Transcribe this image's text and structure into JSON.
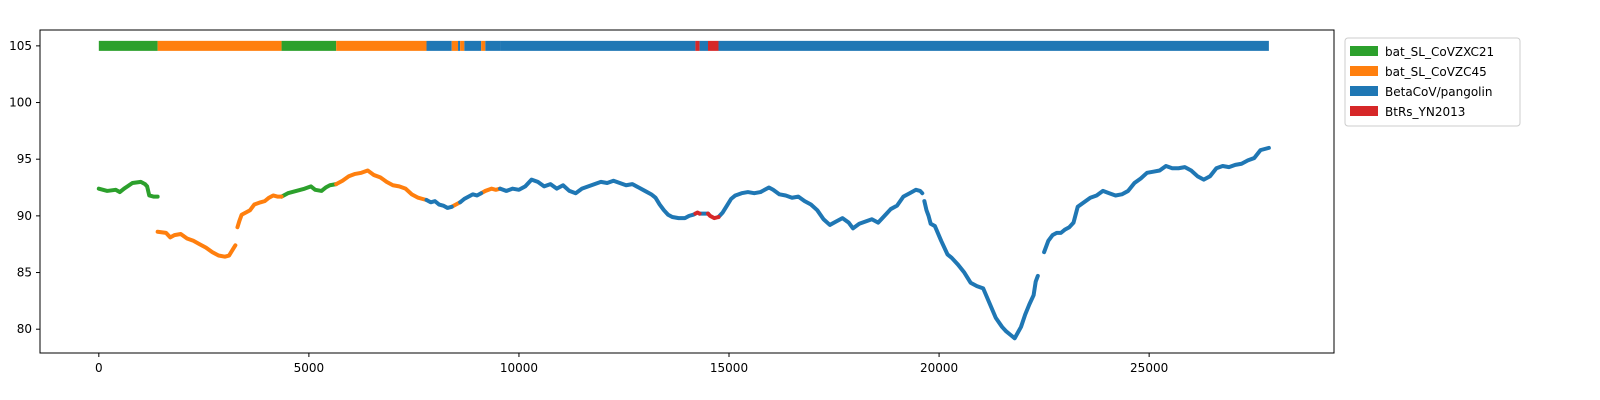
{
  "chart_data": {
    "type": "scatter",
    "title": "",
    "xlabel": "",
    "ylabel": "",
    "xlim": [
      -1400,
      29400
    ],
    "ylim": [
      77.9,
      106.4
    ],
    "x_ticks": [
      0,
      5000,
      10000,
      15000,
      20000,
      25000
    ],
    "y_ticks": [
      80,
      85,
      90,
      95,
      100,
      105
    ],
    "grid": false,
    "legend_position": "outside-top-right",
    "legend": [
      {
        "name": "bat_SL_CoVZXC21",
        "color": "#2ca02c"
      },
      {
        "name": "bat_SL_CoVZC45",
        "color": "#ff7f0e"
      },
      {
        "name": "BetaCoV/pangolin",
        "color": "#1f77b4"
      },
      {
        "name": "BtRs_YN2013",
        "color": "#d62728"
      }
    ],
    "segment_bar": {
      "y": 105,
      "segments": [
        {
          "start": 0,
          "end": 1400,
          "series": "bat_SL_CoVZXC21"
        },
        {
          "start": 1400,
          "end": 4350,
          "series": "bat_SL_CoVZC45"
        },
        {
          "start": 4350,
          "end": 5650,
          "series": "bat_SL_CoVZXC21"
        },
        {
          "start": 5650,
          "end": 7800,
          "series": "bat_SL_CoVZC45"
        },
        {
          "start": 7800,
          "end": 8400,
          "series": "BetaCoV/pangolin"
        },
        {
          "start": 8400,
          "end": 8550,
          "series": "bat_SL_CoVZC45"
        },
        {
          "start": 8550,
          "end": 8600,
          "series": "BetaCoV/pangolin"
        },
        {
          "start": 8600,
          "end": 8700,
          "series": "bat_SL_CoVZC45"
        },
        {
          "start": 8700,
          "end": 9100,
          "series": "BetaCoV/pangolin"
        },
        {
          "start": 9100,
          "end": 9200,
          "series": "bat_SL_CoVZC45"
        },
        {
          "start": 9200,
          "end": 9550,
          "series": "BetaCoV/pangolin"
        },
        {
          "start": 9550,
          "end": 14200,
          "series": "BetaCoV/pangolin"
        },
        {
          "start": 14200,
          "end": 14300,
          "series": "BtRs_YN2013"
        },
        {
          "start": 14300,
          "end": 14500,
          "series": "BetaCoV/pangolin"
        },
        {
          "start": 14500,
          "end": 14750,
          "series": "BtRs_YN2013"
        },
        {
          "start": 14750,
          "end": 27850,
          "series": "BetaCoV/pangolin"
        }
      ]
    },
    "series": [
      {
        "name": "bat_SL_CoVZXC21",
        "color": "#2ca02c",
        "segments": [
          [
            [
              0,
              92.4
            ],
            [
              200,
              92.2
            ],
            [
              400,
              92.3
            ],
            [
              500,
              92.1
            ],
            [
              600,
              92.4
            ],
            [
              800,
              92.9
            ],
            [
              1000,
              93.0
            ],
            [
              1100,
              92.8
            ],
            [
              1150,
              92.6
            ],
            [
              1200,
              91.8
            ],
            [
              1300,
              91.7
            ],
            [
              1400,
              91.7
            ]
          ],
          [
            [
              4350,
              91.7
            ],
            [
              4500,
              92.0
            ],
            [
              4700,
              92.2
            ],
            [
              4900,
              92.4
            ],
            [
              5050,
              92.6
            ],
            [
              5150,
              92.3
            ],
            [
              5300,
              92.2
            ],
            [
              5400,
              92.5
            ],
            [
              5500,
              92.7
            ],
            [
              5650,
              92.8
            ]
          ]
        ]
      },
      {
        "name": "bat_SL_CoVZC45",
        "color": "#ff7f0e",
        "segments": [
          [
            [
              1400,
              88.6
            ],
            [
              1600,
              88.5
            ],
            [
              1700,
              88.1
            ],
            [
              1800,
              88.3
            ],
            [
              1950,
              88.4
            ],
            [
              2100,
              88.0
            ],
            [
              2250,
              87.8
            ],
            [
              2400,
              87.5
            ],
            [
              2550,
              87.2
            ],
            [
              2700,
              86.8
            ],
            [
              2850,
              86.5
            ],
            [
              3000,
              86.4
            ],
            [
              3100,
              86.5
            ],
            [
              3200,
              87.1
            ],
            [
              3250,
              87.4
            ]
          ],
          [
            [
              3300,
              89.0
            ],
            [
              3350,
              89.6
            ],
            [
              3400,
              90.1
            ],
            [
              3500,
              90.3
            ],
            [
              3600,
              90.5
            ],
            [
              3700,
              91.0
            ],
            [
              3850,
              91.2
            ],
            [
              3950,
              91.3
            ],
            [
              4050,
              91.6
            ],
            [
              4150,
              91.8
            ],
            [
              4250,
              91.7
            ],
            [
              4350,
              91.7
            ]
          ],
          [
            [
              5650,
              92.8
            ],
            [
              5800,
              93.1
            ],
            [
              5950,
              93.5
            ],
            [
              6100,
              93.7
            ],
            [
              6250,
              93.8
            ],
            [
              6400,
              94.0
            ],
            [
              6550,
              93.6
            ],
            [
              6700,
              93.4
            ],
            [
              6850,
              93.0
            ],
            [
              7000,
              92.7
            ],
            [
              7150,
              92.6
            ],
            [
              7300,
              92.4
            ],
            [
              7450,
              91.9
            ],
            [
              7600,
              91.6
            ],
            [
              7700,
              91.5
            ],
            [
              7800,
              91.4
            ]
          ],
          [
            [
              8400,
              90.8
            ],
            [
              8500,
              91.0
            ],
            [
              8600,
              91.2
            ]
          ],
          [
            [
              9100,
              92.0
            ],
            [
              9200,
              92.2
            ],
            [
              9350,
              92.4
            ],
            [
              9450,
              92.3
            ],
            [
              9550,
              92.4
            ]
          ]
        ]
      },
      {
        "name": "BetaCoV/pangolin",
        "color": "#1f77b4",
        "segments": [
          [
            [
              7800,
              91.4
            ],
            [
              7900,
              91.2
            ],
            [
              8000,
              91.3
            ],
            [
              8100,
              91.0
            ],
            [
              8200,
              90.9
            ],
            [
              8300,
              90.7
            ],
            [
              8400,
              90.8
            ]
          ],
          [
            [
              8600,
              91.2
            ],
            [
              8700,
              91.5
            ],
            [
              8800,
              91.7
            ],
            [
              8900,
              91.9
            ],
            [
              9000,
              91.8
            ],
            [
              9100,
              92.0
            ]
          ],
          [
            [
              9550,
              92.4
            ],
            [
              9700,
              92.2
            ],
            [
              9850,
              92.4
            ],
            [
              10000,
              92.3
            ],
            [
              10150,
              92.6
            ],
            [
              10300,
              93.2
            ],
            [
              10450,
              93.0
            ],
            [
              10600,
              92.6
            ],
            [
              10750,
              92.8
            ],
            [
              10900,
              92.4
            ],
            [
              11050,
              92.7
            ],
            [
              11200,
              92.2
            ],
            [
              11350,
              92.0
            ],
            [
              11500,
              92.4
            ],
            [
              11650,
              92.6
            ],
            [
              11800,
              92.8
            ],
            [
              11950,
              93.0
            ],
            [
              12100,
              92.9
            ],
            [
              12250,
              93.1
            ],
            [
              12400,
              92.9
            ],
            [
              12550,
              92.7
            ],
            [
              12700,
              92.8
            ],
            [
              12850,
              92.5
            ],
            [
              13000,
              92.2
            ],
            [
              13150,
              91.9
            ],
            [
              13250,
              91.6
            ],
            [
              13350,
              91.0
            ],
            [
              13450,
              90.5
            ],
            [
              13550,
              90.1
            ],
            [
              13650,
              89.9
            ],
            [
              13800,
              89.8
            ],
            [
              13950,
              89.8
            ],
            [
              14050,
              90.0
            ],
            [
              14150,
              90.1
            ],
            [
              14200,
              90.2
            ]
          ],
          [
            [
              14300,
              90.2
            ],
            [
              14400,
              90.2
            ],
            [
              14500,
              90.2
            ]
          ],
          [
            [
              14750,
              89.9
            ],
            [
              14850,
              90.3
            ],
            [
              14950,
              90.9
            ],
            [
              15050,
              91.5
            ],
            [
              15150,
              91.8
            ],
            [
              15300,
              92.0
            ],
            [
              15450,
              92.1
            ],
            [
              15600,
              92.0
            ],
            [
              15750,
              92.1
            ],
            [
              15850,
              92.3
            ],
            [
              15950,
              92.5
            ],
            [
              16050,
              92.3
            ],
            [
              16200,
              91.9
            ],
            [
              16350,
              91.8
            ],
            [
              16500,
              91.6
            ],
            [
              16650,
              91.7
            ],
            [
              16800,
              91.3
            ],
            [
              16950,
              91.0
            ],
            [
              17100,
              90.5
            ],
            [
              17250,
              89.7
            ],
            [
              17400,
              89.2
            ],
            [
              17550,
              89.5
            ],
            [
              17700,
              89.8
            ],
            [
              17850,
              89.4
            ],
            [
              17950,
              88.9
            ],
            [
              18100,
              89.3
            ],
            [
              18250,
              89.5
            ],
            [
              18400,
              89.7
            ],
            [
              18550,
              89.4
            ],
            [
              18700,
              90.0
            ],
            [
              18850,
              90.6
            ],
            [
              19000,
              90.9
            ],
            [
              19150,
              91.7
            ],
            [
              19300,
              92.0
            ],
            [
              19450,
              92.3
            ],
            [
              19550,
              92.2
            ],
            [
              19600,
              92.0
            ]
          ],
          [
            [
              19650,
              91.3
            ],
            [
              19700,
              90.5
            ],
            [
              19750,
              90.0
            ],
            [
              19800,
              89.3
            ],
            [
              19900,
              89.1
            ],
            [
              20050,
              87.8
            ],
            [
              20200,
              86.6
            ],
            [
              20300,
              86.3
            ],
            [
              20450,
              85.7
            ],
            [
              20600,
              85.0
            ],
            [
              20750,
              84.1
            ],
            [
              20900,
              83.8
            ],
            [
              21050,
              83.6
            ],
            [
              21200,
              82.3
            ],
            [
              21350,
              81.0
            ],
            [
              21500,
              80.2
            ],
            [
              21600,
              79.8
            ],
            [
              21700,
              79.5
            ],
            [
              21800,
              79.2
            ],
            [
              21950,
              80.2
            ],
            [
              22050,
              81.3
            ],
            [
              22150,
              82.2
            ],
            [
              22250,
              83.0
            ],
            [
              22300,
              84.2
            ],
            [
              22350,
              84.7
            ]
          ],
          [
            [
              22500,
              86.8
            ],
            [
              22600,
              87.8
            ],
            [
              22700,
              88.3
            ],
            [
              22800,
              88.5
            ],
            [
              22900,
              88.5
            ],
            [
              23000,
              88.8
            ],
            [
              23100,
              89.0
            ],
            [
              23200,
              89.4
            ],
            [
              23300,
              90.8
            ],
            [
              23450,
              91.2
            ],
            [
              23600,
              91.6
            ],
            [
              23750,
              91.8
            ],
            [
              23900,
              92.2
            ],
            [
              24050,
              92.0
            ],
            [
              24200,
              91.8
            ],
            [
              24350,
              91.9
            ],
            [
              24500,
              92.2
            ],
            [
              24650,
              92.9
            ],
            [
              24800,
              93.3
            ],
            [
              24950,
              93.8
            ],
            [
              25100,
              93.9
            ],
            [
              25250,
              94.0
            ],
            [
              25400,
              94.4
            ],
            [
              25550,
              94.2
            ],
            [
              25700,
              94.2
            ],
            [
              25850,
              94.3
            ],
            [
              26000,
              94.0
            ],
            [
              26150,
              93.5
            ],
            [
              26300,
              93.2
            ],
            [
              26450,
              93.5
            ],
            [
              26600,
              94.2
            ],
            [
              26750,
              94.4
            ],
            [
              26900,
              94.3
            ],
            [
              27050,
              94.5
            ],
            [
              27200,
              94.6
            ],
            [
              27350,
              94.9
            ],
            [
              27500,
              95.1
            ],
            [
              27650,
              95.8
            ],
            [
              27850,
              96.0
            ]
          ]
        ]
      },
      {
        "name": "BtRs_YN2013",
        "color": "#d62728",
        "segments": [
          [
            [
              14200,
              90.2
            ],
            [
              14250,
              90.3
            ],
            [
              14300,
              90.2
            ]
          ],
          [
            [
              14500,
              90.2
            ],
            [
              14550,
              90.0
            ],
            [
              14650,
              89.8
            ],
            [
              14750,
              89.9
            ]
          ]
        ]
      }
    ]
  }
}
